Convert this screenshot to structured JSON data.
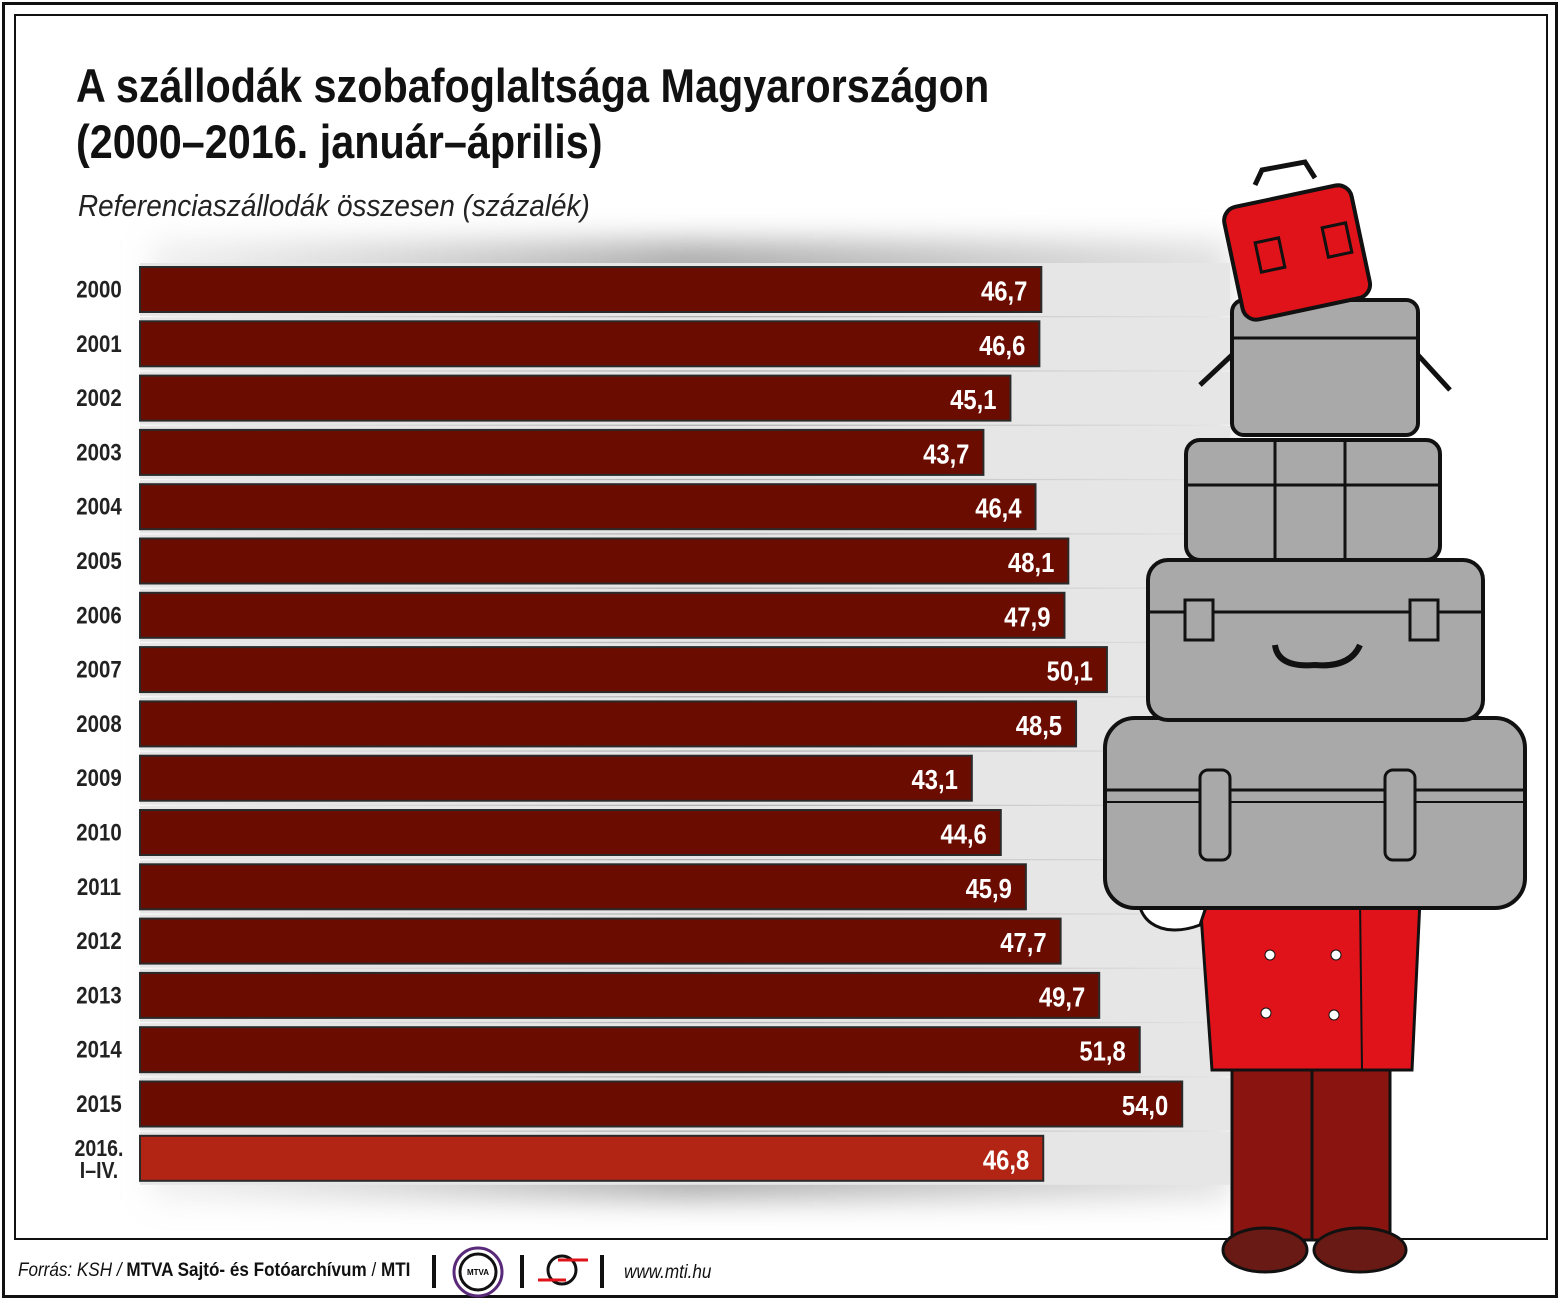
{
  "title_line1": "A szállodák szobafoglaltsága Magyarországon",
  "title_line2": "(2000–2016. január–április)",
  "subtitle": "Referenciaszállodák összesen (százalék)",
  "footer": {
    "source_prefix": "Forrás: KSH / ",
    "source_org": "MTVA Sajtó- és Fotóarchívum",
    "source_sep": " / ",
    "source_mti": "MTI",
    "logo_mtva": "MTVA",
    "url": "www.mti.hu"
  },
  "colors": {
    "bar": "#6b0c00",
    "bar_highlight": "#b22515",
    "label": "#ffffff"
  },
  "chart_data": {
    "type": "bar",
    "orientation": "horizontal",
    "categories": [
      "2000",
      "2001",
      "2002",
      "2003",
      "2004",
      "2005",
      "2006",
      "2007",
      "2008",
      "2009",
      "2010",
      "2011",
      "2012",
      "2013",
      "2014",
      "2015",
      "2016. I–IV."
    ],
    "values": [
      46.7,
      46.6,
      45.1,
      43.7,
      46.4,
      48.1,
      47.9,
      50.1,
      48.5,
      43.1,
      44.6,
      45.9,
      47.7,
      49.7,
      51.8,
      54.0,
      46.8
    ],
    "data_labels": [
      "46,7",
      "46,6",
      "45,1",
      "43,7",
      "46,4",
      "48,1",
      "47,9",
      "50,1",
      "48,5",
      "43,1",
      "44,6",
      "45,9",
      "47,7",
      "49,7",
      "51,8",
      "54,0",
      "46,8"
    ],
    "highlight_index": 16,
    "title": "A szállodák szobafoglaltsága Magyarországon (2000–2016. január–április)",
    "xlabel": "",
    "ylabel": "",
    "xlim": [
      0,
      60
    ],
    "grid": false
  }
}
